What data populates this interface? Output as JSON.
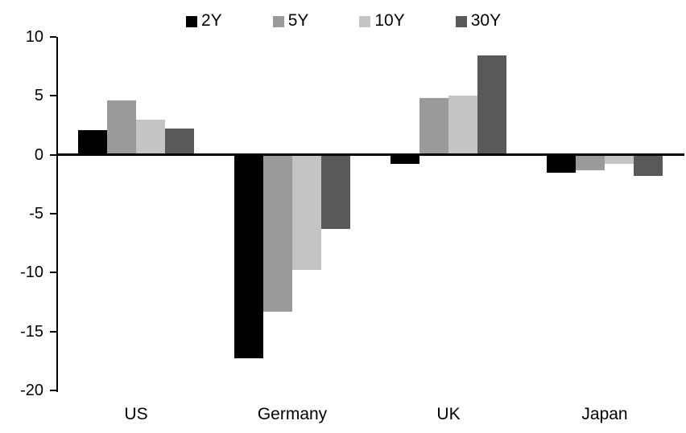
{
  "chart_data": {
    "type": "bar",
    "title": "",
    "xlabel": "",
    "ylabel": "",
    "categories": [
      "US",
      "Germany",
      "UK",
      "Japan"
    ],
    "series": [
      {
        "name": "2Y",
        "color": "#000000",
        "values": [
          2.1,
          -17.3,
          -0.8,
          -1.5
        ]
      },
      {
        "name": "5Y",
        "color": "#9a9a9a",
        "values": [
          4.6,
          -13.3,
          4.8,
          -1.3
        ]
      },
      {
        "name": "10Y",
        "color": "#c4c4c4",
        "values": [
          3.0,
          -9.8,
          5.0,
          -0.8
        ]
      },
      {
        "name": "30Y",
        "color": "#595959",
        "values": [
          2.2,
          -6.3,
          8.4,
          -1.8
        ]
      }
    ],
    "ylim": [
      -20,
      10
    ],
    "yticks": [
      10,
      5,
      0,
      -5,
      -10,
      -15,
      -20
    ],
    "legend_position": "top",
    "grid": false
  }
}
